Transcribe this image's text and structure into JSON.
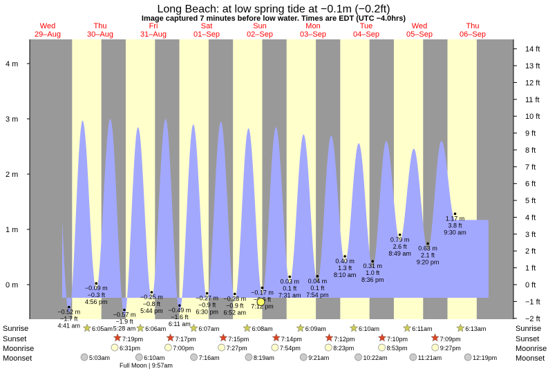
{
  "title": "Long Beach: at low  spring tide at −0.1m (−0.2ft)",
  "subtitle": "Image captured 7 minutes before low water. Times are EDT (UTC −4.0hrs)",
  "colors": {
    "night": "#999999",
    "day": "#ffffcc",
    "water": "#a3a8ff",
    "date_text": "#ff0000",
    "current_marker": "#ffff66"
  },
  "days": [
    {
      "weekday": "Wed",
      "date": "29–Aug"
    },
    {
      "weekday": "Thu",
      "date": "30–Aug"
    },
    {
      "weekday": "Fri",
      "date": "31–Aug"
    },
    {
      "weekday": "Sat",
      "date": "01–Sep"
    },
    {
      "weekday": "Sun",
      "date": "02–Sep"
    },
    {
      "weekday": "Mon",
      "date": "03–Sep"
    },
    {
      "weekday": "Tue",
      "date": "04–Sep"
    },
    {
      "weekday": "Wed",
      "date": "05–Sep"
    },
    {
      "weekday": "Thu",
      "date": "06–Sep"
    }
  ],
  "row_labels": {
    "sunrise": "Sunrise",
    "sunset": "Sunset",
    "moonrise": "Moonrise",
    "moonset": "Moonset"
  },
  "full_moon_label": "Full Moon | 9:57am",
  "sunrise": [
    "6:05am",
    "6:06am",
    "6:07am",
    "6:08am",
    "6:09am",
    "6:10am",
    "6:11am",
    "6:13am"
  ],
  "sunset": [
    "7:19pm",
    "7:17pm",
    "7:15pm",
    "7:14pm",
    "7:12pm",
    "7:10pm",
    "7:09pm"
  ],
  "moonrise": [
    "6:31pm",
    "7:00pm",
    "7:27pm",
    "7:54pm",
    "8:23pm",
    "8:53pm",
    "9:27pm"
  ],
  "moonset": [
    "5:03am",
    "6:10am",
    "7:16am",
    "8:19am",
    "9:21am",
    "10:22am",
    "11:21am",
    "12:19pm"
  ],
  "chart_data": {
    "type": "area",
    "title": "Long Beach: at low  spring tide at −0.1m (−0.2ft)",
    "y_left_unit": "m",
    "y_left_ticks": [
      "4 m",
      "3 m",
      "2 m",
      "1 m",
      "0 m"
    ],
    "y_left_values": [
      4,
      3,
      2,
      1,
      0
    ],
    "y_right_ticks": [
      "14 ft",
      "13 ft",
      "12 ft",
      "11 ft",
      "10 ft",
      "9 ft",
      "8 ft",
      "7 ft",
      "6 ft",
      "5 ft",
      "4 ft",
      "3 ft",
      "2 ft",
      "1 ft",
      "0 ft",
      "−1 ft",
      "−2 ft"
    ],
    "y_right_values": [
      14,
      13,
      12,
      11,
      10,
      9,
      8,
      7,
      6,
      5,
      4,
      3,
      2,
      1,
      0,
      -1,
      -2
    ],
    "ylim_m": [
      -0.6,
      4.5
    ],
    "high_tide_peaks_m": [
      3.0,
      2.97,
      3.0,
      2.85,
      3.0,
      2.9,
      2.95,
      2.83,
      2.85,
      2.72,
      2.7,
      2.56,
      2.6,
      2.46,
      2.6
    ],
    "low_tides": [
      {
        "m": "−0.52 m",
        "ft": "−1.7 ft",
        "time": "4:41 am",
        "value_m": -0.52
      },
      {
        "m": "−0.09 m",
        "ft": "−0.3 ft",
        "time": "4:56 pm",
        "value_m": -0.09
      },
      {
        "m": "−0.57 m",
        "ft": "−1.9 ft",
        "time": "5:28 am",
        "value_m": -0.57
      },
      {
        "m": "−0.25 m",
        "ft": "−0.8 ft",
        "time": "5:44 pm",
        "value_m": -0.25
      },
      {
        "m": "−0.49 m",
        "ft": "−1.6 ft",
        "time": "6:11 am",
        "value_m": -0.49
      },
      {
        "m": "−0.27 m",
        "ft": "−0.9 ft",
        "time": "6:30 pm",
        "value_m": -0.27
      },
      {
        "m": "−0.28 m",
        "ft": "−0.9 ft",
        "time": "6:52 am",
        "value_m": -0.28
      },
      {
        "m": "−0.17 m",
        "ft": "−0.6 ft",
        "time": "7:12 pm",
        "value_m": -0.17
      },
      {
        "m": "0.03 m",
        "ft": "0.1 ft",
        "time": "7:31 am",
        "value_m": 0.03
      },
      {
        "m": "0.04 m",
        "ft": "0.1 ft",
        "time": "7:54 pm",
        "value_m": 0.04
      },
      {
        "m": "0.40 m",
        "ft": "1.3 ft",
        "time": "8:10 am",
        "value_m": 0.4
      },
      {
        "m": "0.31 m",
        "ft": "1.0 ft",
        "time": "8:36 pm",
        "value_m": 0.31
      },
      {
        "m": "0.79 m",
        "ft": "2.6 ft",
        "time": "8:49 am",
        "value_m": 0.79
      },
      {
        "m": "0.63 m",
        "ft": "2.1 ft",
        "time": "9:20 pm",
        "value_m": 0.63
      },
      {
        "m": "1.17 m",
        "ft": "3.8 ft",
        "time": "9:30 am",
        "value_m": 1.17
      }
    ],
    "current_marker_m": -0.1
  }
}
